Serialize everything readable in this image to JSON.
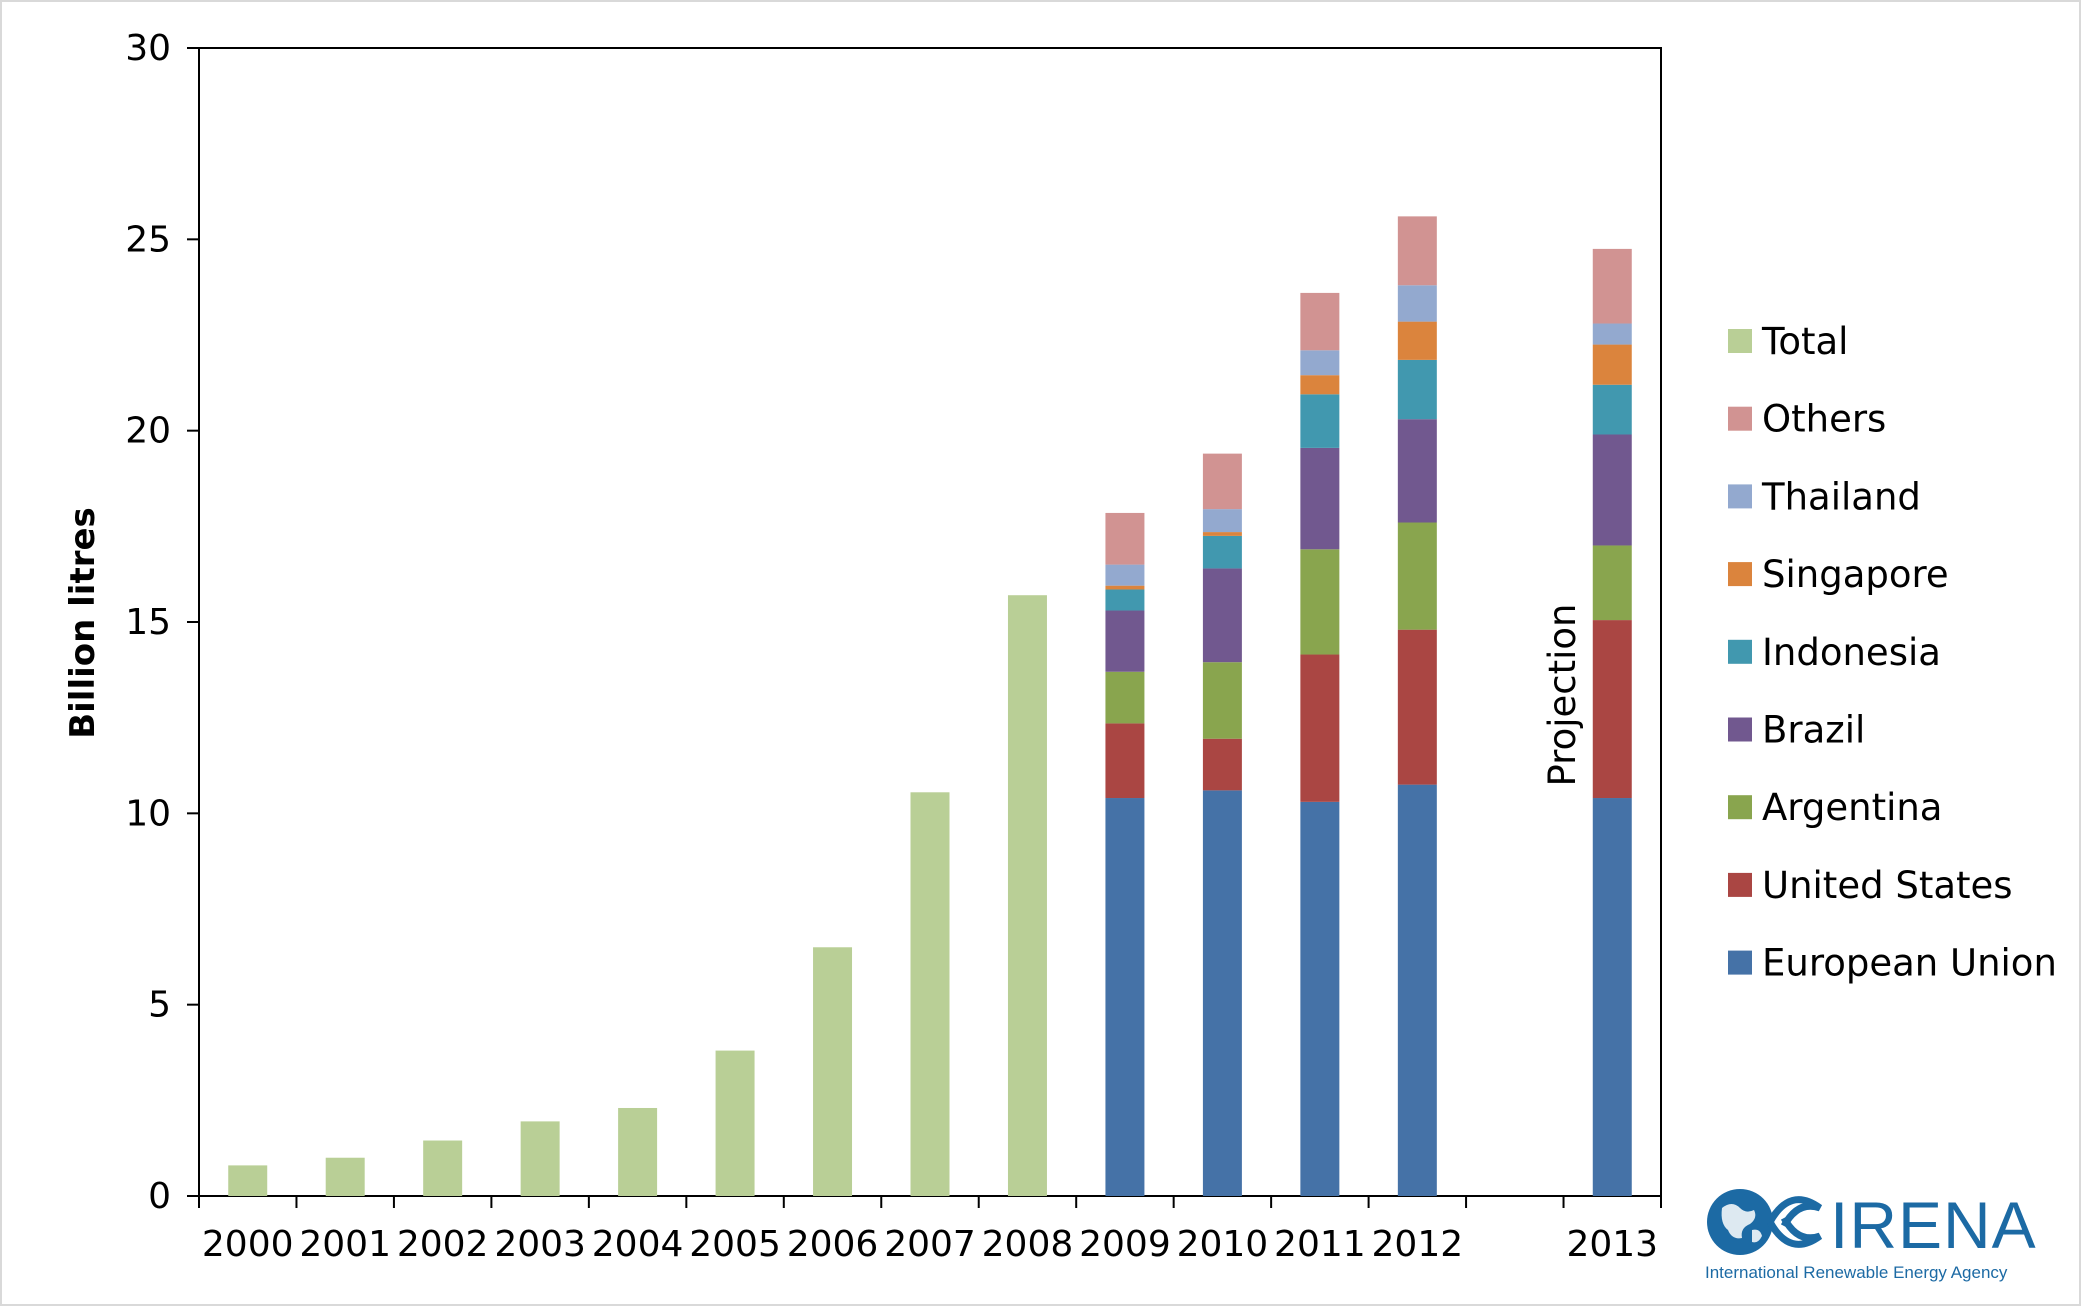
{
  "chart_data": {
    "type": "bar",
    "stacked": true,
    "ylabel": "Billion litres",
    "ylim": [
      0,
      30
    ],
    "yticks": [
      0,
      5,
      10,
      15,
      20,
      25,
      30
    ],
    "grid": false,
    "legend_position": "right",
    "categories": [
      "2000",
      "2001",
      "2002",
      "2003",
      "2004",
      "2005",
      "2006",
      "2007",
      "2008",
      "2009",
      "2010",
      "2011",
      "2012",
      "",
      "2013"
    ],
    "annotation": "Projection",
    "series": [
      {
        "name": "European Union",
        "color": "#4572a7",
        "values": [
          null,
          null,
          null,
          null,
          null,
          null,
          null,
          null,
          null,
          10.4,
          10.6,
          10.3,
          10.75,
          null,
          10.4
        ]
      },
      {
        "name": "United States",
        "color": "#aa4643",
        "values": [
          null,
          null,
          null,
          null,
          null,
          null,
          null,
          null,
          null,
          1.95,
          1.35,
          3.85,
          4.05,
          null,
          4.65
        ]
      },
      {
        "name": "Argentina",
        "color": "#89a54e",
        "values": [
          null,
          null,
          null,
          null,
          null,
          null,
          null,
          null,
          null,
          1.35,
          2.0,
          2.75,
          2.8,
          null,
          1.95
        ]
      },
      {
        "name": "Brazil",
        "color": "#71588f",
        "values": [
          null,
          null,
          null,
          null,
          null,
          null,
          null,
          null,
          null,
          1.6,
          2.45,
          2.65,
          2.7,
          null,
          2.9
        ]
      },
      {
        "name": "Indonesia",
        "color": "#4198af",
        "values": [
          null,
          null,
          null,
          null,
          null,
          null,
          null,
          null,
          null,
          0.55,
          0.85,
          1.4,
          1.55,
          null,
          1.3
        ]
      },
      {
        "name": "Singapore",
        "color": "#db843d",
        "values": [
          null,
          null,
          null,
          null,
          null,
          null,
          null,
          null,
          null,
          0.1,
          0.1,
          0.5,
          1.0,
          null,
          1.05
        ]
      },
      {
        "name": "Thailand",
        "color": "#93a9cf",
        "values": [
          null,
          null,
          null,
          null,
          null,
          null,
          null,
          null,
          null,
          0.55,
          0.6,
          0.65,
          0.95,
          null,
          0.55
        ]
      },
      {
        "name": "Others",
        "color": "#d19392",
        "values": [
          null,
          null,
          null,
          null,
          null,
          null,
          null,
          null,
          null,
          1.35,
          1.45,
          1.5,
          1.8,
          null,
          1.95
        ]
      },
      {
        "name": "Total",
        "color": "#b9cf96",
        "values": [
          0.8,
          1.0,
          1.45,
          1.95,
          2.3,
          3.8,
          6.5,
          10.55,
          15.7,
          null,
          null,
          null,
          null,
          null,
          null
        ]
      }
    ],
    "legend_order": [
      "Total",
      "Others",
      "Thailand",
      "Singapore",
      "Indonesia",
      "Brazil",
      "Argentina",
      "United States",
      "European Union"
    ]
  },
  "logo": {
    "name": "IRENA",
    "subtitle": "International Renewable Energy Agency"
  }
}
